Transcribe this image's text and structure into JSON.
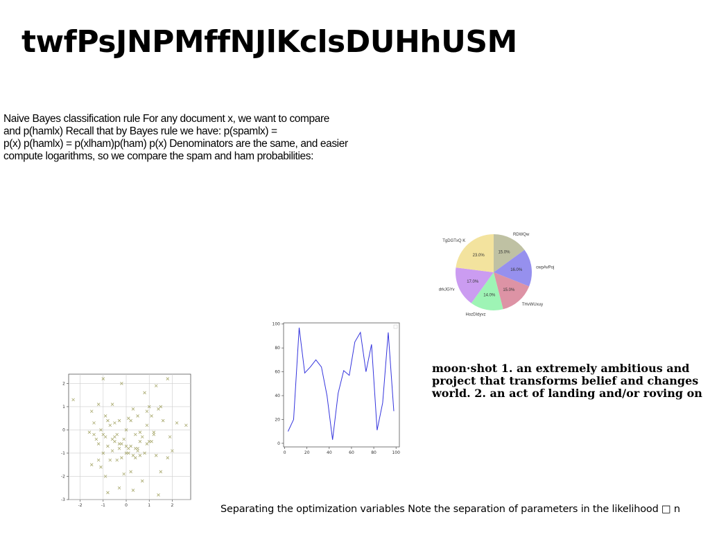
{
  "page": {
    "title": "twfPsJNPMffNJlKclsDUHhUSM",
    "paragraph_lines": [
      "Naive Bayes classification rule For any document x, we want to compare",
      "and p(hamlx) Recall that by Bayes rule we have: p(spamlx) =",
      "p(x) p(hamlx) = p(xlham)p(ham) p(x) Denominators are the same, and easier",
      "compute logarithms, so we compare the spam and ham probabilities:"
    ],
    "moonshot_lines": [
      "moon·shot 1. an extremely ambitious and",
      "project that transforms belief and changes",
      "world. 2. an act of landing and/or roving on"
    ],
    "caption": "Separating the optimization variables Note the separation of parameters in the likelihood □ n"
  },
  "chart_data": [
    {
      "type": "pie",
      "labels": [
        "RDWQw",
        "cwpAvPoj",
        "THvWUxuy",
        "HozDIdyvz",
        "drkJGYv",
        "TgDGTxQ K"
      ],
      "values": [
        15.0,
        16.0,
        15.0,
        14.0,
        17.0,
        23.0
      ],
      "value_labels": [
        "15.0%",
        "16.0%",
        "15.0%",
        "14.0%",
        "17.0%",
        "23.0%"
      ],
      "colors": [
        "#bfc1a3",
        "#9690ee",
        "#dd93a5",
        "#9ef4b5",
        "#cb9cf1",
        "#f3e39e"
      ]
    },
    {
      "type": "line",
      "x": [
        3,
        8,
        13,
        18,
        23,
        28,
        33,
        38,
        43,
        48,
        53,
        58,
        63,
        68,
        73,
        78,
        83,
        88,
        93,
        98
      ],
      "y": [
        10,
        20,
        97,
        59,
        64,
        70,
        64,
        40,
        3,
        42,
        61,
        57,
        85,
        93,
        60,
        83,
        11,
        34,
        93,
        27
      ],
      "xlim": [
        -1,
        103
      ],
      "ylim": [
        -3,
        101
      ],
      "xticks": [
        0,
        20,
        40,
        60,
        80,
        100
      ],
      "yticks": [
        0,
        20,
        40,
        60,
        80,
        100
      ],
      "color": "#3333dd"
    },
    {
      "type": "scatter",
      "x": [
        -2.3,
        -1.5,
        -1.2,
        -1.0,
        -0.9,
        -0.8,
        -0.6,
        -0.5,
        -0.3,
        -0.2,
        0.1,
        0.3,
        0.5,
        0.8,
        1.0,
        1.3,
        1.5,
        1.8,
        2.2,
        2.6,
        -1.4,
        -1.1,
        -0.7,
        -0.4,
        0.0,
        0.2,
        0.6,
        0.9,
        1.1,
        1.4,
        -1.3,
        -0.9,
        -0.5,
        -0.1,
        0.4,
        0.7,
        1.2,
        1.6,
        -1.6,
        -1.2,
        -0.8,
        -0.3,
        0.1,
        0.5,
        0.9,
        1.3,
        -1.0,
        -0.6,
        -0.2,
        0.3,
        0.8,
        1.1,
        -0.7,
        -0.3,
        0.2,
        0.6,
        -1.5,
        -1.1,
        -0.4,
        0.0,
        0.4,
        1.0,
        1.5,
        2.0,
        -0.9,
        -0.1,
        0.3,
        0.7,
        -1.2,
        -0.5,
        0.2,
        1.9,
        -0.8,
        0.4,
        1.4,
        -1.0,
        -0.2,
        0.6,
        1.2,
        1.8,
        -1.4,
        -0.6,
        0.0,
        0.5,
        -0.3,
        0.1,
        0.9
      ],
      "y": [
        1.3,
        0.8,
        1.1,
        2.2,
        0.6,
        0.4,
        1.1,
        0.3,
        0.4,
        2.0,
        0.5,
        0.9,
        0.6,
        1.6,
        1.0,
        1.9,
        1.0,
        2.2,
        0.3,
        0.2,
        0.3,
        0.0,
        0.2,
        -0.2,
        0.0,
        0.4,
        -0.1,
        0.2,
        0.6,
        0.9,
        -0.4,
        -0.3,
        -0.5,
        -0.4,
        -0.2,
        -0.3,
        -0.1,
        0.4,
        -0.1,
        -0.6,
        -0.7,
        -0.6,
        -0.8,
        -0.9,
        -0.6,
        -1.1,
        -1.0,
        -0.9,
        -1.2,
        -1.1,
        -1.0,
        -0.5,
        -1.3,
        -0.8,
        -0.7,
        -1.1,
        -1.5,
        -1.6,
        -1.3,
        -1.0,
        -1.2,
        -0.5,
        -1.8,
        -0.9,
        -2.0,
        -1.9,
        -2.6,
        -2.2,
        -1.3,
        -0.3,
        -1.8,
        -0.3,
        -2.7,
        -0.8,
        -2.8,
        -0.2,
        -0.6,
        -0.5,
        -0.2,
        -1.2,
        -0.2,
        -0.4,
        -0.7,
        -0.8,
        -2.5,
        -1.0,
        0.8
      ],
      "xlim": [
        -2.5,
        2.8
      ],
      "ylim": [
        -3.0,
        2.4
      ],
      "xticks": [
        -2,
        -1,
        0,
        1,
        2
      ],
      "yticks": [
        -3,
        -2,
        -1,
        0,
        1,
        2
      ],
      "grid": true,
      "marker": "x",
      "color": "#a8a86c"
    }
  ]
}
